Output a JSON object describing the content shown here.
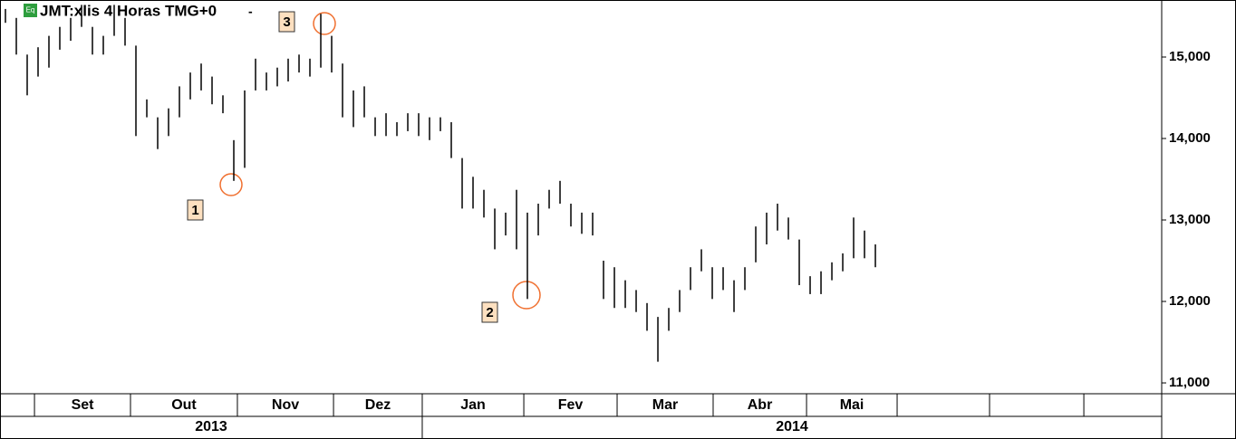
{
  "chart_data": {
    "type": "ohlc",
    "title": "JMT:xlis 4 Horas TMG+0",
    "title_suffix": "-",
    "icon": "Eq",
    "color": "#000000",
    "x": [
      0.5,
      1.5,
      2.5,
      3.5,
      4.5,
      5.5,
      6.5,
      7.5,
      8.5,
      9.5,
      10.5,
      11.5,
      12.5,
      13.5,
      14.5,
      15.5,
      16.5,
      17.5,
      18.5,
      19.5,
      20.5,
      21.5,
      22.5,
      23.5,
      24.5,
      25.5,
      26.5,
      27.5,
      28.5,
      29.5,
      30.5,
      31.5,
      32.5,
      33.5,
      34.5,
      35.5,
      36.5,
      37.5,
      38.5,
      39.5,
      40.5,
      41.5,
      42.5,
      43.5,
      44.5,
      45.5,
      46.5,
      47.5,
      48.5,
      49.5,
      50.5,
      51.5,
      52.5,
      53.5,
      54.5,
      55.5,
      56.5,
      57.5,
      58.5,
      59.5,
      60.5,
      61.5,
      62.5,
      63.5,
      64.5,
      65.5,
      66.5,
      67.5,
      68.5,
      69.5,
      70.5,
      71.5,
      72.5,
      73.5,
      74.5,
      75.5,
      76.5,
      77.5,
      78.5,
      79.5,
      80.5
    ],
    "high": [
      15590,
      15480,
      15030,
      15120,
      15260,
      15370,
      15480,
      15640,
      15370,
      15260,
      15640,
      15480,
      15140,
      14480,
      14260,
      14370,
      14640,
      14810,
      14920,
      14760,
      14530,
      13980,
      14590,
      14980,
      14810,
      14870,
      14980,
      15030,
      14980,
      15530,
      15260,
      14920,
      14590,
      14640,
      14260,
      14310,
      14200,
      14310,
      14310,
      14260,
      14260,
      14200,
      13760,
      13530,
      13370,
      13140,
      13090,
      13370,
      13090,
      13200,
      13370,
      13480,
      13200,
      13090,
      13090,
      12500,
      12420,
      12260,
      12140,
      11980,
      11810,
      11920,
      12140,
      12420,
      12640,
      12420,
      12420,
      12260,
      12420,
      12920,
      13090,
      13200,
      13030,
      12760,
      12310,
      12370,
      12480,
      12590,
      13030,
      12870,
      12700
    ],
    "low": [
      15420,
      15030,
      14530,
      14760,
      14870,
      15090,
      15200,
      15370,
      15030,
      15030,
      15260,
      15140,
      14030,
      14260,
      13870,
      14030,
      14260,
      14480,
      14590,
      14420,
      14310,
      13480,
      13640,
      14590,
      14590,
      14640,
      14700,
      14810,
      14760,
      14870,
      14810,
      14260,
      14140,
      14260,
      14030,
      14030,
      14030,
      14090,
      14030,
      13980,
      14090,
      13760,
      13140,
      13140,
      13030,
      12640,
      12810,
      12640,
      12030,
      12810,
      13140,
      13200,
      12920,
      12830,
      12810,
      12030,
      11920,
      11920,
      11870,
      11640,
      11260,
      11640,
      11870,
      12140,
      12370,
      12030,
      12140,
      11870,
      12140,
      12480,
      12700,
      12870,
      12760,
      12200,
      12090,
      12090,
      12260,
      12370,
      12530,
      12530,
      12420
    ],
    "xlim": [
      0,
      106.83
    ],
    "ylim": [
      10867,
      15700
    ],
    "yticks": [
      {
        "value": 11000,
        "label": "11,000"
      },
      {
        "value": 12000,
        "label": "12,000"
      },
      {
        "value": 13000,
        "label": "13,000"
      },
      {
        "value": 14000,
        "label": "14,000"
      },
      {
        "value": 15000,
        "label": "15,000"
      }
    ],
    "month_boundaries": [
      3.17,
      12,
      21.83,
      30.67,
      38.83,
      48.17,
      56.75,
      65.58,
      74.17,
      82.5,
      91,
      99.67
    ],
    "months": [
      "Set",
      "Out",
      "Nov",
      "Dez",
      "Jan",
      "Fev",
      "Mar",
      "Abr",
      "Mai"
    ],
    "year_boundary": 38.83,
    "years": [
      "2013",
      "2014"
    ],
    "annotations": [
      "1",
      "2",
      "3"
    ]
  }
}
